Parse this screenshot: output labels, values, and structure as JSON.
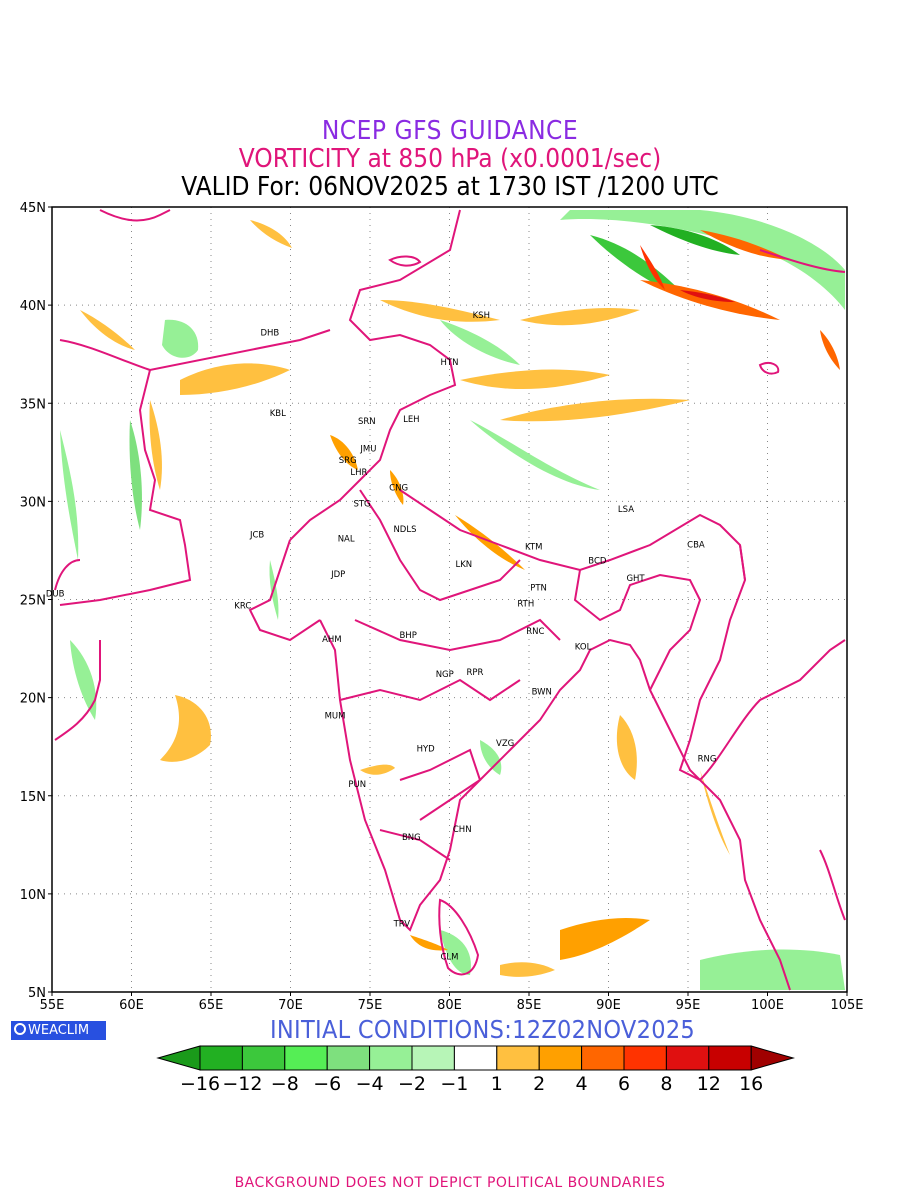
{
  "title": {
    "line1": "NCEP GFS GUIDANCE",
    "line2": "VORTICITY at 850 hPa (x0.0001/sec)",
    "line3": "VALID For: 06NOV2025 at 1730 IST /1200 UTC"
  },
  "initial_conditions": "INITIAL CONDITIONS:12Z02NOV2025",
  "logo_text": "WEACLIM",
  "footer_text": "BACKGROUND DOES NOT DEPICT POLITICAL BOUNDARIES",
  "axes": {
    "lon_labels": [
      "55E",
      "60E",
      "65E",
      "70E",
      "75E",
      "80E",
      "85E",
      "90E",
      "95E",
      "100E",
      "105E"
    ],
    "lat_labels": [
      "45N",
      "40N",
      "35N",
      "30N",
      "25N",
      "20N",
      "15N",
      "10N",
      "5N"
    ],
    "lon_range": [
      55,
      105
    ],
    "lat_range": [
      5,
      45
    ],
    "grid": "dotted"
  },
  "colorbar": {
    "labels": [
      "−16",
      "−12",
      "−8",
      "−6",
      "−4",
      "−2",
      "−1",
      "1",
      "2",
      "4",
      "6",
      "8",
      "12",
      "16"
    ],
    "colors": [
      "#1a9a1a",
      "#22b022",
      "#3cc83c",
      "#55ee55",
      "#7ee07e",
      "#96f096",
      "#b7f5b7",
      "#ffffff",
      "#ffc040",
      "#ffa000",
      "#ff6600",
      "#ff3300",
      "#e01010",
      "#c80000",
      "#a00000"
    ]
  },
  "cities": [
    {
      "code": "KSH",
      "lon": 82.0,
      "lat": 39.5
    },
    {
      "code": "DHB",
      "lon": 68.7,
      "lat": 38.6
    },
    {
      "code": "HTN",
      "lon": 80.0,
      "lat": 37.1
    },
    {
      "code": "KBL",
      "lon": 69.2,
      "lat": 34.5
    },
    {
      "code": "SRN",
      "lon": 74.8,
      "lat": 34.1
    },
    {
      "code": "LEH",
      "lon": 77.6,
      "lat": 34.2
    },
    {
      "code": "JMU",
      "lon": 74.9,
      "lat": 32.7
    },
    {
      "code": "SRG",
      "lon": 73.6,
      "lat": 32.1
    },
    {
      "code": "LHR",
      "lon": 74.3,
      "lat": 31.5
    },
    {
      "code": "CNG",
      "lon": 76.8,
      "lat": 30.7
    },
    {
      "code": "LSA",
      "lon": 91.1,
      "lat": 29.6
    },
    {
      "code": "STG",
      "lon": 74.5,
      "lat": 29.9
    },
    {
      "code": "JCB",
      "lon": 67.9,
      "lat": 28.3
    },
    {
      "code": "NDLS",
      "lon": 77.2,
      "lat": 28.6
    },
    {
      "code": "NAL",
      "lon": 73.5,
      "lat": 28.1
    },
    {
      "code": "CBA",
      "lon": 95.5,
      "lat": 27.8
    },
    {
      "code": "KTM",
      "lon": 85.3,
      "lat": 27.7
    },
    {
      "code": "BCD",
      "lon": 89.3,
      "lat": 27.0
    },
    {
      "code": "LKN",
      "lon": 80.9,
      "lat": 26.8
    },
    {
      "code": "GHT",
      "lon": 91.7,
      "lat": 26.1
    },
    {
      "code": "JDP",
      "lon": 73.0,
      "lat": 26.3
    },
    {
      "code": "PTN",
      "lon": 85.6,
      "lat": 25.6
    },
    {
      "code": "DUB",
      "lon": 55.2,
      "lat": 25.3
    },
    {
      "code": "RTH",
      "lon": 84.8,
      "lat": 24.8
    },
    {
      "code": "KRC",
      "lon": 67.0,
      "lat": 24.7
    },
    {
      "code": "BHP",
      "lon": 77.4,
      "lat": 23.2
    },
    {
      "code": "AHM",
      "lon": 72.6,
      "lat": 23.0
    },
    {
      "code": "RNC",
      "lon": 85.4,
      "lat": 23.4
    },
    {
      "code": "KOL",
      "lon": 88.4,
      "lat": 22.6
    },
    {
      "code": "NGP",
      "lon": 79.7,
      "lat": 21.2
    },
    {
      "code": "RPR",
      "lon": 81.6,
      "lat": 21.3
    },
    {
      "code": "BWN",
      "lon": 85.8,
      "lat": 20.3
    },
    {
      "code": "MUM",
      "lon": 72.8,
      "lat": 19.1
    },
    {
      "code": "HYD",
      "lon": 78.5,
      "lat": 17.4
    },
    {
      "code": "VZG",
      "lon": 83.5,
      "lat": 17.7
    },
    {
      "code": "RNG",
      "lon": 96.2,
      "lat": 16.9
    },
    {
      "code": "PUN",
      "lon": 74.2,
      "lat": 15.6
    },
    {
      "code": "CHN",
      "lon": 80.8,
      "lat": 13.3
    },
    {
      "code": "BNG",
      "lon": 77.6,
      "lat": 12.9
    },
    {
      "code": "TRV",
      "lon": 77.0,
      "lat": 8.5
    },
    {
      "code": "CLM",
      "lon": 80.0,
      "lat": 6.8
    }
  ]
}
